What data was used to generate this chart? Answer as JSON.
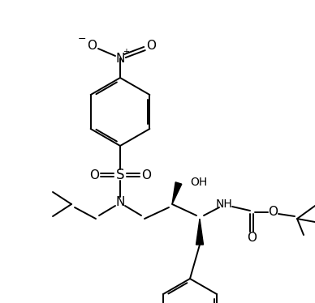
{
  "bg_color": "#ffffff",
  "lw": 1.4,
  "figsize": [
    3.88,
    3.74
  ],
  "dpi": 100,
  "xlim": [
    0,
    388
  ],
  "ylim": [
    0,
    374
  ]
}
